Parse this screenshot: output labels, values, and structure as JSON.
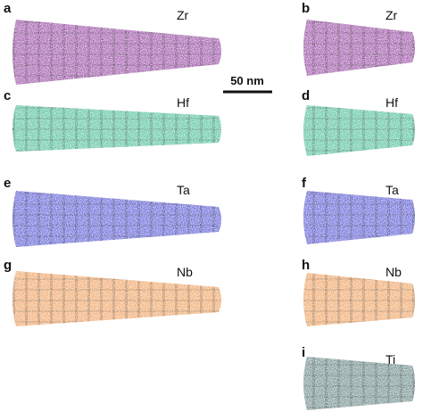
{
  "panels": [
    {
      "label": "a",
      "element": "Zr",
      "color": "#9a4ea6"
    },
    {
      "label": "b",
      "element": "Zr",
      "color": "#9a4ea6"
    },
    {
      "label": "c",
      "element": "Hf",
      "color": "#4fbf9a"
    },
    {
      "label": "d",
      "element": "Hf",
      "color": "#4fbf9a"
    },
    {
      "label": "e",
      "element": "Ta",
      "color": "#5a5ad6"
    },
    {
      "label": "f",
      "element": "Ta",
      "color": "#5a5ad6"
    },
    {
      "label": "g",
      "element": "Nb",
      "color": "#f0a262"
    },
    {
      "label": "h",
      "element": "Nb",
      "color": "#f0a262"
    },
    {
      "label": "i",
      "element": "Ti",
      "color": "#6b8c8a"
    }
  ],
  "scale_bar": {
    "label": "50 nm"
  }
}
